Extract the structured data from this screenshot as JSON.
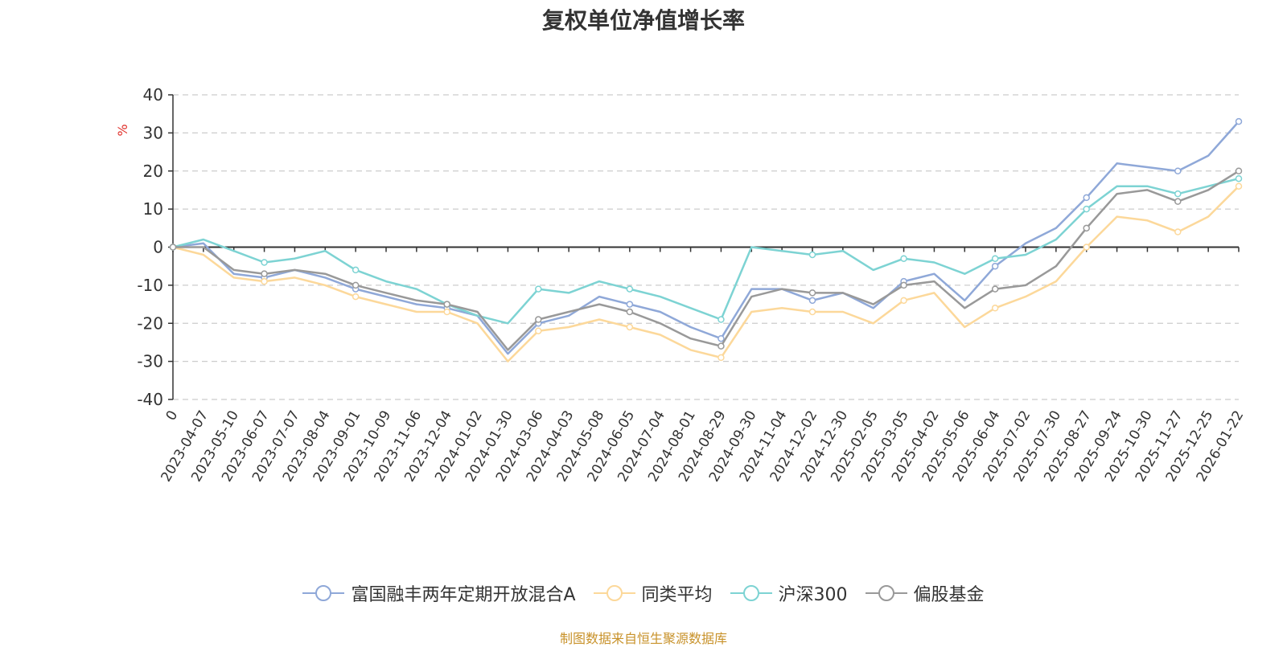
{
  "chart_data": {
    "type": "line",
    "title": "复权单位净值增长率",
    "ylabel": "%",
    "ylim": [
      -40,
      40
    ],
    "yticks": [
      -40,
      -30,
      -20,
      -10,
      0,
      10,
      20,
      30,
      40
    ],
    "grid": true,
    "legend_position": "bottom",
    "categories": [
      "0",
      "2023-04-07",
      "2023-05-10",
      "2023-06-07",
      "2023-07-07",
      "2023-08-04",
      "2023-09-01",
      "2023-10-09",
      "2023-11-06",
      "2023-12-04",
      "2024-01-02",
      "2024-01-30",
      "2024-03-06",
      "2024-04-03",
      "2024-05-08",
      "2024-06-05",
      "2024-07-04",
      "2024-08-01",
      "2024-08-29",
      "2024-09-30",
      "2024-11-04",
      "2024-12-02",
      "2024-12-30",
      "2025-02-05",
      "2025-03-05",
      "2025-04-02",
      "2025-05-06",
      "2025-06-04",
      "2025-07-02",
      "2025-07-30",
      "2025-08-27",
      "2025-09-24",
      "2025-10-30",
      "2025-11-27",
      "2025-12-25",
      "2026-01-22"
    ],
    "series": [
      {
        "name": "富国融丰两年定期开放混合A",
        "color": "#8fa8d8",
        "values": [
          0,
          1,
          -7,
          -8,
          -6,
          -8,
          -11,
          -13,
          -15,
          -16,
          -18,
          -28,
          -20,
          -18,
          -13,
          -15,
          -17,
          -21,
          -24,
          -11,
          -11,
          -14,
          -12,
          -16,
          -9,
          -7,
          -14,
          -5,
          1,
          5,
          13,
          22,
          21,
          20,
          24,
          33
        ]
      },
      {
        "name": "同类平均",
        "color": "#fcd89a",
        "values": [
          0,
          -2,
          -8,
          -9,
          -8,
          -10,
          -13,
          -15,
          -17,
          -17,
          -20,
          -30,
          -22,
          -21,
          -19,
          -21,
          -23,
          -27,
          -29,
          -17,
          -16,
          -17,
          -17,
          -20,
          -14,
          -12,
          -21,
          -16,
          -13,
          -9,
          0,
          8,
          7,
          4,
          8,
          16
        ]
      },
      {
        "name": "沪深300",
        "color": "#7dd3d3",
        "values": [
          0,
          2,
          -1,
          -4,
          -3,
          -1,
          -6,
          -9,
          -11,
          -15,
          -18,
          -20,
          -11,
          -12,
          -9,
          -11,
          -13,
          -16,
          -19,
          0,
          -1,
          -2,
          -1,
          -6,
          -3,
          -4,
          -7,
          -3,
          -2,
          2,
          10,
          16,
          16,
          14,
          16,
          18
        ]
      },
      {
        "name": "偏股基金",
        "color": "#999999",
        "values": [
          0,
          0,
          -6,
          -7,
          -6,
          -7,
          -10,
          -12,
          -14,
          -15,
          -17,
          -27,
          -19,
          -17,
          -15,
          -17,
          -20,
          -24,
          -26,
          -13,
          -11,
          -12,
          -12,
          -15,
          -10,
          -9,
          -16,
          -11,
          -10,
          -5,
          5,
          14,
          15,
          12,
          15,
          20
        ]
      }
    ]
  },
  "source_text": "制图数据来自恒生聚源数据库"
}
